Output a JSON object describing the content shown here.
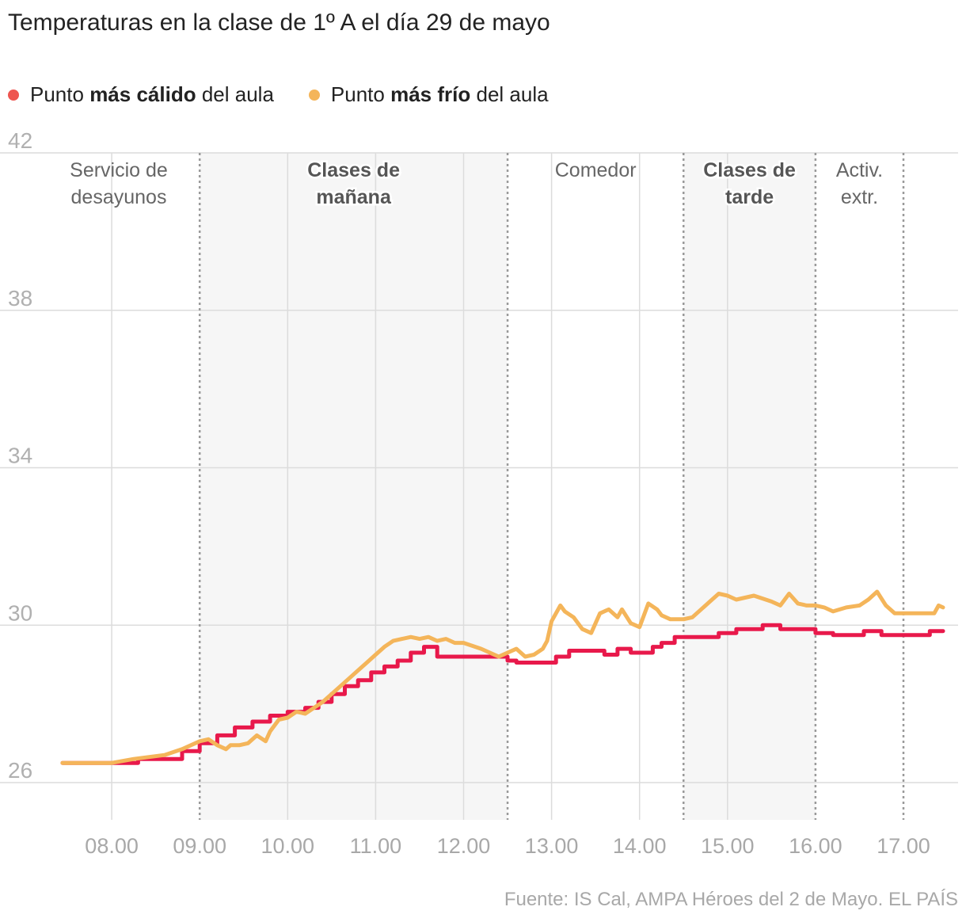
{
  "title": "Temperaturas en la clase de 1º A el día 29 de mayo",
  "legend": [
    {
      "pre": "Punto ",
      "bold": "más cálido",
      "post": " del aula",
      "color": "#e8194b",
      "dot_color": "#ee5550"
    },
    {
      "pre": "Punto ",
      "bold": "más frío",
      "post": " del aula",
      "color": "#f4b55a",
      "dot_color": "#f4b55a"
    }
  ],
  "source": "Fuente: IS Cal, AMPA Héroes del 2 de Mayo. EL PAÍS",
  "chart_data": {
    "type": "line",
    "ylim": [
      26,
      42
    ],
    "y_ticks": [
      26,
      30,
      34,
      38,
      42
    ],
    "x_hours_range": [
      7.3,
      17.5
    ],
    "x_ticks": [
      {
        "h": 8,
        "label": "08.00"
      },
      {
        "h": 9,
        "label": "09.00"
      },
      {
        "h": 10,
        "label": "10.00"
      },
      {
        "h": 11,
        "label": "11.00"
      },
      {
        "h": 12,
        "label": "12.00"
      },
      {
        "h": 13,
        "label": "13.00"
      },
      {
        "h": 14,
        "label": "14.00"
      },
      {
        "h": 15,
        "label": "15.00"
      },
      {
        "h": 16,
        "label": "16.00"
      },
      {
        "h": 17,
        "label": "17.00"
      }
    ],
    "boundaries": [
      9.0,
      12.5,
      14.5,
      16.0,
      17.0
    ],
    "shaded": [
      [
        9.0,
        12.5
      ],
      [
        14.5,
        16.0
      ]
    ],
    "periods": [
      {
        "lines": [
          "Servicio de",
          "desayunos"
        ],
        "center": 8.08,
        "bold": false
      },
      {
        "lines": [
          "Clases de",
          "mañana"
        ],
        "center": 10.75,
        "bold": true
      },
      {
        "lines": [
          "Comedor"
        ],
        "center": 13.5,
        "bold": false
      },
      {
        "lines": [
          "Clases de",
          "tarde"
        ],
        "center": 15.25,
        "bold": true
      },
      {
        "lines": [
          "Activ.",
          "extr."
        ],
        "center": 16.5,
        "bold": false
      }
    ],
    "series": [
      {
        "name": "Punto más cálido del aula",
        "color": "#e8194b",
        "x": [
          7.44,
          8.3,
          8.3,
          8.8,
          8.8,
          9.0,
          9.0,
          9.2,
          9.2,
          9.4,
          9.4,
          9.6,
          9.6,
          9.8,
          9.8,
          10.0,
          10.0,
          10.2,
          10.2,
          10.35,
          10.35,
          10.5,
          10.5,
          10.65,
          10.65,
          10.8,
          10.8,
          10.95,
          10.95,
          11.1,
          11.1,
          11.25,
          11.25,
          11.4,
          11.4,
          11.55,
          11.55,
          11.7,
          11.7,
          12.5,
          12.5,
          12.6,
          12.6,
          13.05,
          13.05,
          13.2,
          13.2,
          13.6,
          13.6,
          13.75,
          13.75,
          13.9,
          13.9,
          14.15,
          14.15,
          14.25,
          14.25,
          14.4,
          14.4,
          14.9,
          14.9,
          15.1,
          15.1,
          15.4,
          15.4,
          15.6,
          15.6,
          16.0,
          16.0,
          16.2,
          16.2,
          16.55,
          16.55,
          16.75,
          16.75,
          17.3,
          17.3,
          17.45
        ],
        "y": [
          26.5,
          26.5,
          26.6,
          26.6,
          26.8,
          26.8,
          27.0,
          27.0,
          27.2,
          27.2,
          27.4,
          27.4,
          27.55,
          27.55,
          27.7,
          27.7,
          27.8,
          27.8,
          27.9,
          27.9,
          28.05,
          28.05,
          28.25,
          28.25,
          28.45,
          28.45,
          28.6,
          28.6,
          28.8,
          28.8,
          28.95,
          28.95,
          29.1,
          29.1,
          29.3,
          29.3,
          29.45,
          29.45,
          29.2,
          29.2,
          29.1,
          29.1,
          29.05,
          29.05,
          29.2,
          29.2,
          29.35,
          29.35,
          29.25,
          29.25,
          29.4,
          29.4,
          29.3,
          29.3,
          29.45,
          29.45,
          29.55,
          29.55,
          29.7,
          29.7,
          29.8,
          29.8,
          29.9,
          29.9,
          30.0,
          30.0,
          29.9,
          29.9,
          29.8,
          29.8,
          29.75,
          29.75,
          29.85,
          29.85,
          29.75,
          29.75,
          29.85,
          29.85
        ]
      },
      {
        "name": "Punto más frío del aula",
        "color": "#f4b55a",
        "x": [
          7.44,
          8.0,
          8.25,
          8.6,
          8.8,
          9.0,
          9.1,
          9.2,
          9.3,
          9.35,
          9.45,
          9.55,
          9.65,
          9.75,
          9.8,
          9.9,
          10.0,
          10.1,
          10.2,
          10.3,
          10.4,
          10.5,
          10.6,
          10.7,
          10.8,
          10.9,
          11.0,
          11.1,
          11.2,
          11.3,
          11.4,
          11.5,
          11.6,
          11.7,
          11.8,
          11.9,
          12.0,
          12.2,
          12.4,
          12.5,
          12.6,
          12.7,
          12.8,
          12.9,
          12.95,
          13.0,
          13.1,
          13.15,
          13.25,
          13.35,
          13.45,
          13.55,
          13.65,
          13.75,
          13.8,
          13.9,
          14.0,
          14.1,
          14.2,
          14.25,
          14.35,
          14.5,
          14.6,
          14.8,
          14.9,
          15.0,
          15.1,
          15.2,
          15.3,
          15.5,
          15.6,
          15.7,
          15.8,
          15.9,
          16.0,
          16.1,
          16.2,
          16.35,
          16.5,
          16.6,
          16.7,
          16.8,
          16.9,
          17.0,
          17.2,
          17.35,
          17.4,
          17.45
        ],
        "y": [
          26.5,
          26.5,
          26.6,
          26.7,
          26.85,
          27.05,
          27.1,
          26.95,
          26.85,
          26.95,
          26.95,
          27.0,
          27.2,
          27.05,
          27.3,
          27.6,
          27.65,
          27.8,
          27.75,
          27.9,
          28.05,
          28.25,
          28.45,
          28.65,
          28.85,
          29.05,
          29.25,
          29.45,
          29.6,
          29.65,
          29.7,
          29.65,
          29.7,
          29.6,
          29.65,
          29.55,
          29.55,
          29.4,
          29.2,
          29.3,
          29.4,
          29.2,
          29.25,
          29.4,
          29.6,
          30.1,
          30.5,
          30.35,
          30.2,
          29.9,
          29.8,
          30.3,
          30.4,
          30.2,
          30.4,
          30.05,
          29.95,
          30.55,
          30.4,
          30.25,
          30.15,
          30.15,
          30.2,
          30.6,
          30.8,
          30.75,
          30.65,
          30.7,
          30.75,
          30.6,
          30.5,
          30.8,
          30.55,
          30.5,
          30.5,
          30.45,
          30.35,
          30.45,
          30.5,
          30.65,
          30.85,
          30.5,
          30.3,
          30.3,
          30.3,
          30.3,
          30.5,
          30.45
        ]
      }
    ]
  }
}
